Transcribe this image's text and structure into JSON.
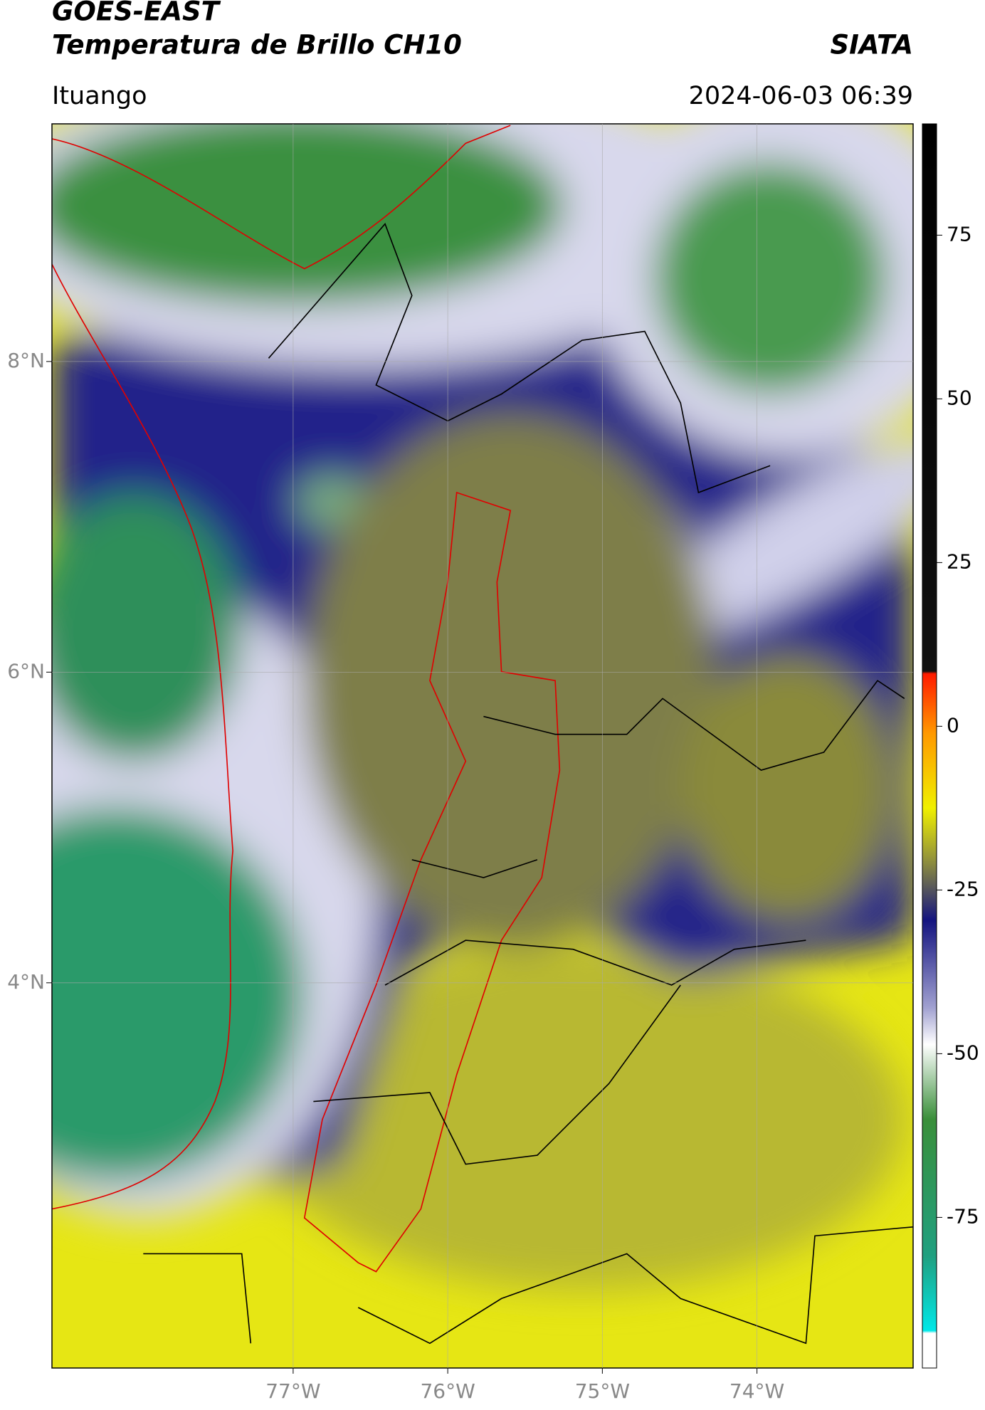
{
  "header": {
    "title": "GOES-EAST",
    "subtitle": "Temperatura de Brillo CH10",
    "brand": "SIATA",
    "location": "Ituango",
    "datetime": "2024-06-03 06:39"
  },
  "map": {
    "xlim": [
      -78.56,
      -72.99
    ],
    "ylim": [
      1.52,
      9.53
    ],
    "xticks": [
      {
        "value": -77,
        "label": "77°W"
      },
      {
        "value": -76,
        "label": "76°W"
      },
      {
        "value": -75,
        "label": "75°W"
      },
      {
        "value": -74,
        "label": "74°W"
      }
    ],
    "yticks": [
      {
        "value": 4,
        "label": "4°N"
      },
      {
        "value": 6,
        "label": "6°N"
      },
      {
        "value": 8,
        "label": "8°N"
      }
    ],
    "grid": true
  },
  "colorbar": {
    "lim": [
      -98,
      92
    ],
    "ticks": [
      -75,
      -50,
      -25,
      0,
      25,
      50,
      75
    ]
  }
}
